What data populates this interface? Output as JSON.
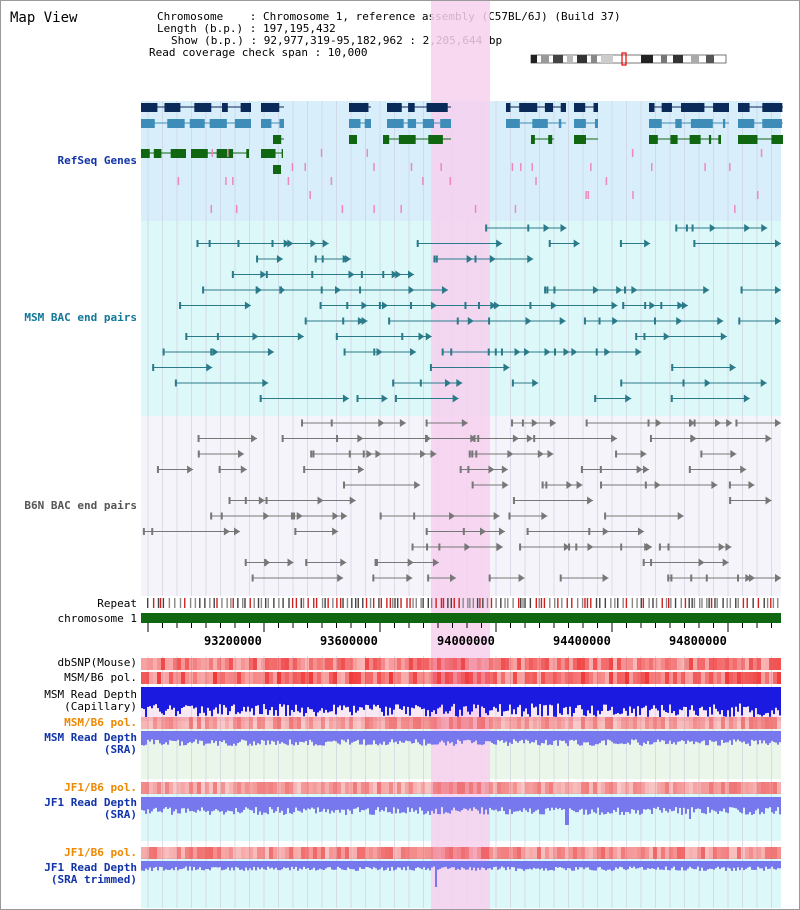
{
  "title": "Map View",
  "info": {
    "chromosome": "Chromosome    : Chromosome 1, reference assembly (C57BL/6J) (Build 37)",
    "length": "Length (b.p.) : 197,195,432",
    "show": "Show (b.p.) : 92,977,319-95,182,962 : 2,205,644 bp",
    "coverage": "Read coverage check span : 10,000"
  },
  "tracks": {
    "refseq": "RefSeq Genes",
    "msm_bac": "MSM BAC end pairs",
    "b6n_bac": "B6N BAC end pairs",
    "repeat": "Repeat",
    "chromosome": "chromosome 1",
    "dbsnp": "dbSNP(Mouse)",
    "msm_b6_pol": "MSM/B6 pol.",
    "msm_read_depth_cap": "MSM Read Depth",
    "capillary": "(Capillary)",
    "msm_b6_pol_2": "MSM/B6 pol.",
    "msm_read_depth_sra": "MSM Read Depth",
    "sra": "(SRA)",
    "jf1_b6_pol": "JF1/B6 pol.",
    "jf1_read_depth": "JF1 Read Depth",
    "sra_2": "(SRA)",
    "jf1_b6_pol_2": "JF1/B6 pol.",
    "jf1_read_depth_trim": "JF1 Read Depth",
    "sra_trimmed": "(SRA trimmed)"
  },
  "axis": {
    "ticks": [
      "93200000",
      "93600000",
      "94000000",
      "94400000",
      "94800000"
    ]
  },
  "colors": {
    "highlight": "#f7d0ee",
    "refseq_bg": "#d8eefa",
    "msm_bg": "#ddf8f8",
    "b6n_bg": "#f4f4fa",
    "gene_dark": "#0a2a5a",
    "gene_mid": "#3d8db8",
    "gene_green": "#116611",
    "chromosome_bar": "#116611",
    "depth_blue": "#1a1ae0",
    "depth_light": "#7777ee"
  }
}
